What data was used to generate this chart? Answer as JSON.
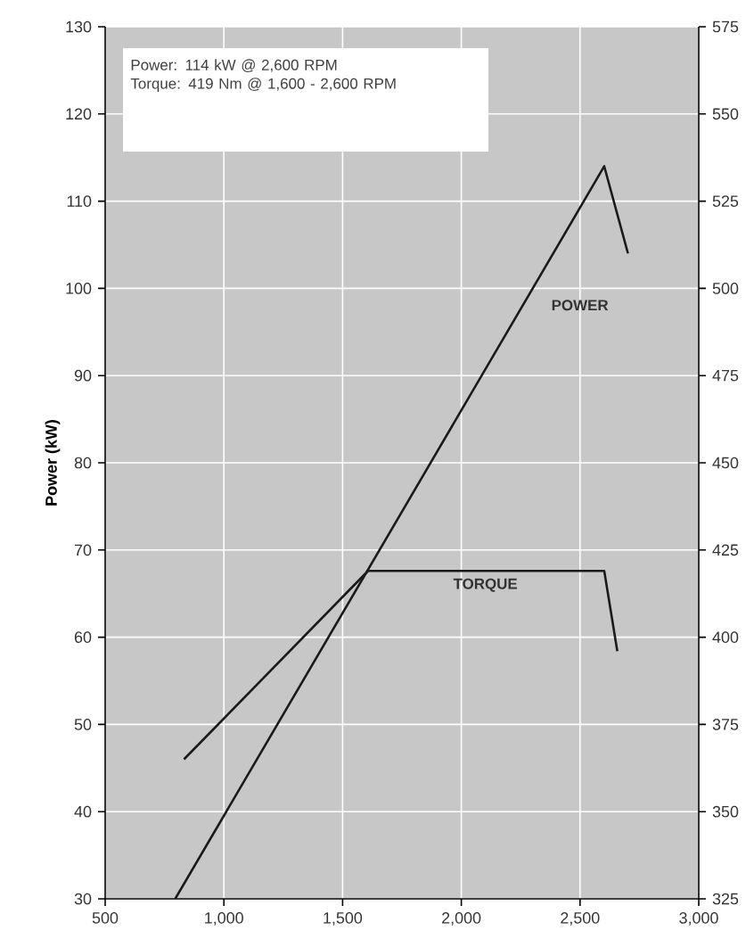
{
  "chart_data": {
    "type": "line",
    "ylabel": "Power (kW)",
    "x": [
      795,
      2602,
      2702
    ],
    "series": [
      {
        "name": "POWER",
        "color": "#1a1a1a",
        "values": [
          30,
          114,
          104
        ]
      },
      {
        "name": "TORQUE",
        "color": "#1a1a1a",
        "axis": "y2",
        "x": [
          832,
          1607,
          2602,
          2657
        ],
        "values": [
          365,
          419,
          419,
          396
        ]
      }
    ],
    "xlim": [
      500,
      3000
    ],
    "xticks": [
      500,
      {
        "value": 1000,
        "label": "1,000"
      },
      {
        "value": 1500,
        "label": "1,500"
      },
      {
        "value": 2000,
        "label": "2,000"
      },
      {
        "value": 2500,
        "label": "2,500"
      },
      {
        "value": 3000,
        "label": "3,000"
      }
    ],
    "ylim": [
      30,
      130
    ],
    "yticks": [
      30,
      40,
      50,
      60,
      70,
      80,
      90,
      100,
      110,
      120,
      130
    ],
    "y2lim": [
      325,
      575
    ],
    "y2ticks": [
      325,
      350,
      375,
      400,
      425,
      450,
      475,
      500,
      525,
      550,
      575
    ],
    "grid": true,
    "marker": "none",
    "line_style": "solid",
    "annotations": [
      "Power: 114 kW @ 2,600 RPM",
      "Torque: 419 Nm @ 1,600 - 2,600 RPM"
    ]
  }
}
